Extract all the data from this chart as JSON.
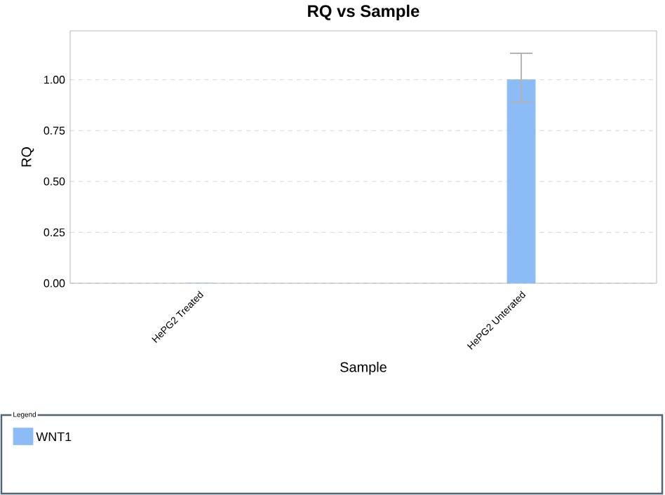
{
  "chart_data": {
    "type": "bar",
    "title": "RQ vs Sample",
    "xlabel": "Sample",
    "ylabel": "RQ",
    "legend_title": "Legend",
    "categories": [
      "HePG2 Treated",
      "HePG2 Unterated"
    ],
    "series": [
      {
        "name": "WNT1",
        "color": "#8cbcf5",
        "values": [
          0,
          1.0
        ],
        "errors": [
          null,
          [
            0.89,
            1.13
          ]
        ]
      }
    ],
    "ylim": [
      0,
      1.24
    ],
    "yticks": [
      {
        "value": 0,
        "label": "0.00"
      },
      {
        "value": 0.25,
        "label": "0.25"
      },
      {
        "value": 0.5,
        "label": "0.50"
      },
      {
        "value": 0.75,
        "label": "0.75"
      },
      {
        "value": 1,
        "label": "1.00"
      }
    ],
    "grid": "y",
    "legend": "bottom"
  }
}
